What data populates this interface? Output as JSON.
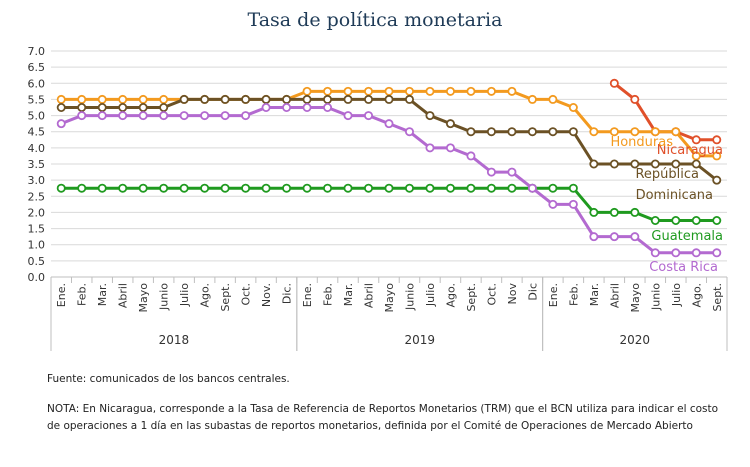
{
  "chart_data": {
    "type": "line",
    "title": "Tasa de política monetaria",
    "ylim": [
      0,
      7
    ],
    "yticks": [
      "0.0",
      "0.5",
      "1.0",
      "1.5",
      "2.0",
      "2.5",
      "3.0",
      "3.5",
      "4.0",
      "4.5",
      "5.0",
      "5.5",
      "6.0",
      "6.5",
      "7.0"
    ],
    "grid": true,
    "categories": [
      "Ene.",
      "Feb.",
      "Mar.",
      "Abril",
      "Mayo",
      "Junio",
      "Julio",
      "Ago.",
      "Sept.",
      "Oct.",
      "Nov.",
      "Dic.",
      "Ene.",
      "Feb.",
      "Mar.",
      "Abril",
      "Mayo",
      "Junio",
      "Julio",
      "Ago.",
      "Sept.",
      "Oct.",
      "Nov",
      "Dic",
      "Ene.",
      "Feb.",
      "Mar.",
      "Abril",
      "Mayo",
      "Junio",
      "Julio",
      "Ago.",
      "Sept."
    ],
    "years": [
      {
        "label": "2018",
        "start": 0,
        "end": 11
      },
      {
        "label": "2019",
        "start": 12,
        "end": 23
      },
      {
        "label": "2020",
        "start": 24,
        "end": 32
      }
    ],
    "series": [
      {
        "name": "Nicaragua",
        "color": "#e0502a",
        "values": [
          null,
          null,
          null,
          null,
          null,
          null,
          null,
          null,
          null,
          null,
          null,
          null,
          null,
          null,
          null,
          null,
          null,
          null,
          null,
          null,
          null,
          null,
          null,
          null,
          null,
          null,
          null,
          6.0,
          5.5,
          4.5,
          4.5,
          4.25,
          4.25
        ]
      },
      {
        "name": "Honduras",
        "color": "#f39a1f",
        "values": [
          5.5,
          5.5,
          5.5,
          5.5,
          5.5,
          5.5,
          5.5,
          5.5,
          5.5,
          5.5,
          5.5,
          5.5,
          5.75,
          5.75,
          5.75,
          5.75,
          5.75,
          5.75,
          5.75,
          5.75,
          5.75,
          5.75,
          5.75,
          5.5,
          5.5,
          5.25,
          4.5,
          4.5,
          4.5,
          4.5,
          4.5,
          3.75,
          3.75
        ]
      },
      {
        "name": "República Dominicana",
        "color": "#6b5125",
        "values": [
          5.25,
          5.25,
          5.25,
          5.25,
          5.25,
          5.25,
          5.5,
          5.5,
          5.5,
          5.5,
          5.5,
          5.5,
          5.5,
          5.5,
          5.5,
          5.5,
          5.5,
          5.5,
          5.0,
          4.75,
          4.5,
          4.5,
          4.5,
          4.5,
          4.5,
          4.5,
          3.5,
          3.5,
          3.5,
          3.5,
          3.5,
          3.5,
          3.0
        ]
      },
      {
        "name": "Guatemala",
        "color": "#1f9a1f",
        "values": [
          2.75,
          2.75,
          2.75,
          2.75,
          2.75,
          2.75,
          2.75,
          2.75,
          2.75,
          2.75,
          2.75,
          2.75,
          2.75,
          2.75,
          2.75,
          2.75,
          2.75,
          2.75,
          2.75,
          2.75,
          2.75,
          2.75,
          2.75,
          2.75,
          2.75,
          2.75,
          2.0,
          2.0,
          2.0,
          1.75,
          1.75,
          1.75,
          1.75
        ]
      },
      {
        "name": "Costa Rica",
        "color": "#b36ad0",
        "values": [
          4.75,
          5.0,
          5.0,
          5.0,
          5.0,
          5.0,
          5.0,
          5.0,
          5.0,
          5.0,
          5.25,
          5.25,
          5.25,
          5.25,
          5.0,
          5.0,
          4.75,
          4.5,
          4.0,
          4.0,
          3.75,
          3.25,
          3.25,
          2.75,
          2.25,
          2.25,
          1.25,
          1.25,
          1.25,
          0.75,
          0.75,
          0.75,
          0.75
        ]
      }
    ]
  },
  "series_labels": {
    "nicaragua": "Nicaragua",
    "honduras": "Honduras",
    "rep_line1": "República",
    "rep_line2": "Dominicana",
    "guatemala": "Guatemala",
    "costa_rica": "Costa Rica"
  },
  "notes": {
    "source": "Fuente: comunicados de los bancos centrales.",
    "nota": "NOTA: En Nicaragua, corresponde a la Tasa de Referencia de Reportos Monetarios (TRM) que el BCN utiliza para indicar el costo de operaciones a 1 día en las subastas de reportos monetarios, definida por el Comité de Operaciones de Mercado Abierto"
  }
}
